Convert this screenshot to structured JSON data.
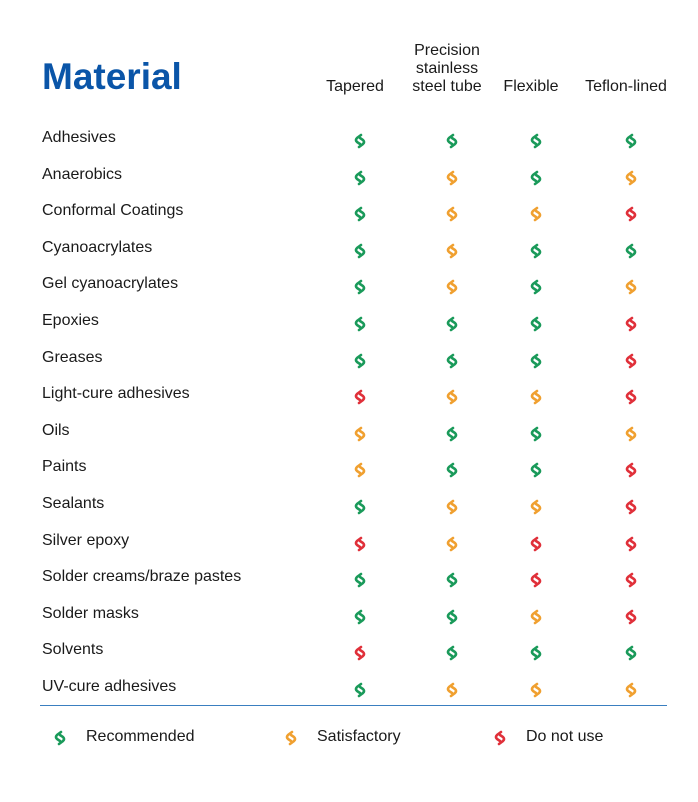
{
  "header": {
    "title": "Material"
  },
  "table": {
    "columns": [
      "Tapered",
      "Precision stainless steel tube",
      "Flexible",
      "Teflon-lined"
    ],
    "rows": [
      {
        "name": "Adhesives",
        "ratings": [
          0,
          0,
          0,
          0
        ]
      },
      {
        "name": "Anaerobics",
        "ratings": [
          0,
          1,
          0,
          1
        ]
      },
      {
        "name": "Conformal Coatings",
        "ratings": [
          0,
          1,
          1,
          2
        ]
      },
      {
        "name": "Cyanoacrylates",
        "ratings": [
          0,
          1,
          0,
          0
        ]
      },
      {
        "name": "Gel cyanoacrylates",
        "ratings": [
          0,
          1,
          0,
          1
        ]
      },
      {
        "name": "Epoxies",
        "ratings": [
          0,
          0,
          0,
          2
        ]
      },
      {
        "name": "Greases",
        "ratings": [
          0,
          0,
          0,
          2
        ]
      },
      {
        "name": "Light-cure adhesives",
        "ratings": [
          2,
          1,
          1,
          2
        ]
      },
      {
        "name": "Oils",
        "ratings": [
          1,
          0,
          0,
          1
        ]
      },
      {
        "name": "Paints",
        "ratings": [
          1,
          0,
          0,
          2
        ]
      },
      {
        "name": "Sealants",
        "ratings": [
          0,
          1,
          1,
          2
        ]
      },
      {
        "name": "Silver epoxy",
        "ratings": [
          2,
          1,
          2,
          2
        ]
      },
      {
        "name": "Solder creams/braze pastes",
        "ratings": [
          0,
          0,
          2,
          2
        ]
      },
      {
        "name": "Solder masks",
        "ratings": [
          0,
          0,
          1,
          2
        ]
      },
      {
        "name": "Solvents",
        "ratings": [
          2,
          0,
          0,
          0
        ]
      },
      {
        "name": "UV-cure adhesives",
        "ratings": [
          0,
          1,
          1,
          1
        ]
      }
    ]
  },
  "legend": [
    {
      "label": "Recommended",
      "color": "#1a9a5a"
    },
    {
      "label": "Satisfactory",
      "color": "#f0a030"
    },
    {
      "label": "Do not use",
      "color": "#e0303a"
    }
  ]
}
